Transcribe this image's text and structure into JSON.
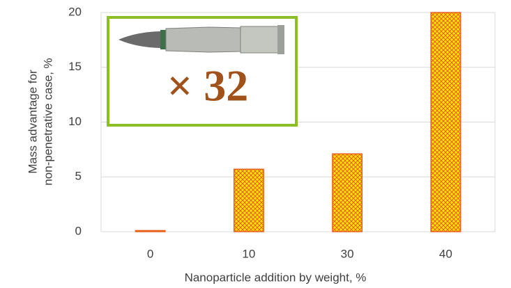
{
  "chart_data": {
    "type": "bar",
    "ylabel": [
      "Mass advantage for",
      "non-penetrative case, %"
    ],
    "xlabel": "Nanoparticle addition by weight, %",
    "categories": [
      "0",
      "10",
      "30",
      "40"
    ],
    "values": [
      0.1,
      5.7,
      7.1,
      20
    ],
    "color": "#ffe600",
    "edgecolor": "#e8601c",
    "ylim": [
      0,
      20
    ],
    "yticks": [
      0,
      5,
      10,
      15,
      20
    ],
    "grid": true,
    "annotation": "× 32"
  }
}
